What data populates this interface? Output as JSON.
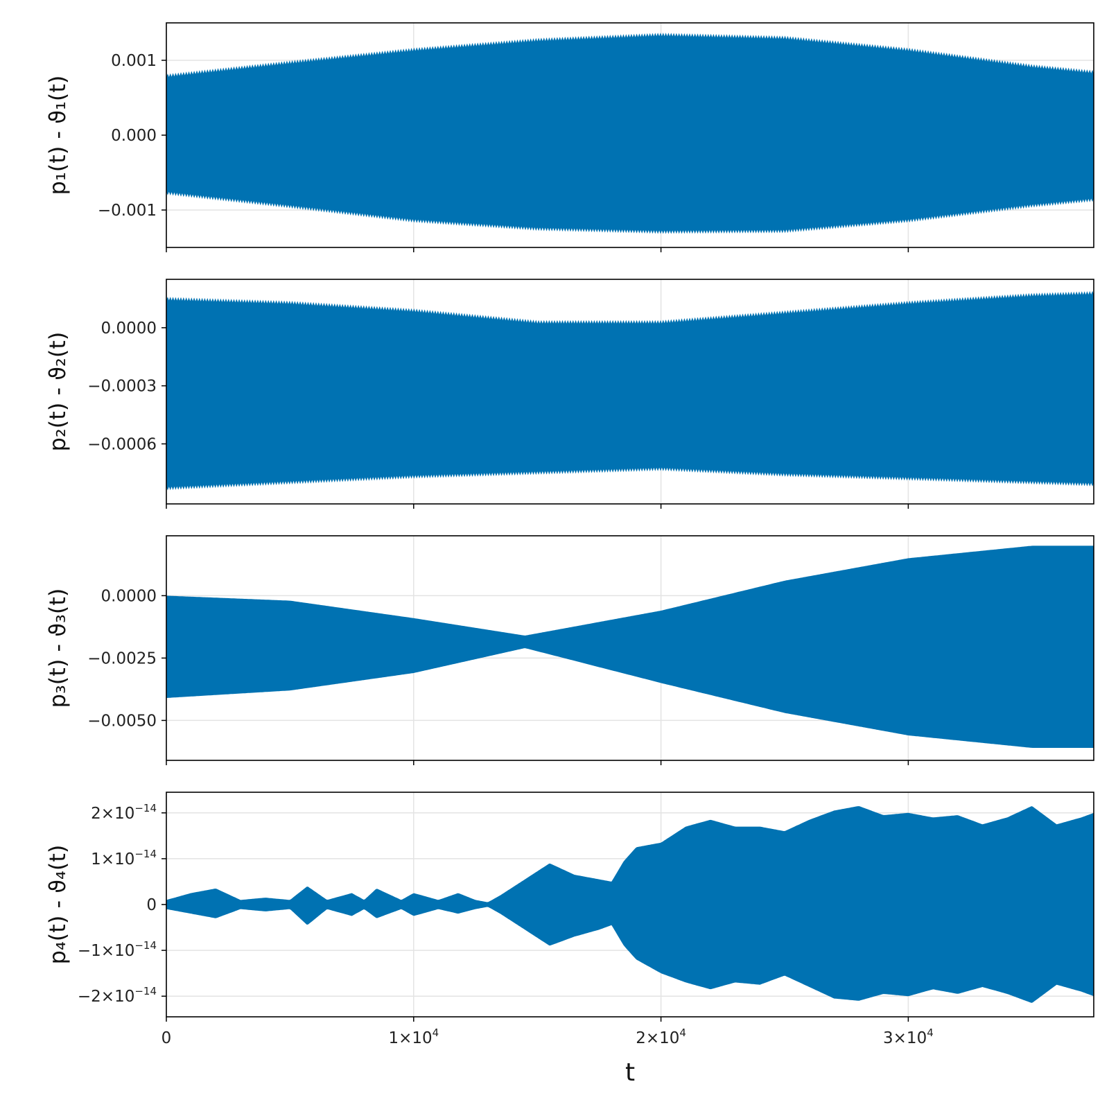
{
  "chart_data": {
    "type": "area",
    "shared_x": {
      "label": "t",
      "range": [
        0,
        37500
      ],
      "ticks": [
        {
          "value": 0,
          "label": "0"
        },
        {
          "value": 10000,
          "mant": "1×10",
          "exp": "4"
        },
        {
          "value": 20000,
          "mant": "2×10",
          "exp": "4"
        },
        {
          "value": 30000,
          "mant": "3×10",
          "exp": "4"
        }
      ],
      "grid": true
    },
    "color": "#0072b2",
    "panels": [
      {
        "ylabel": "p₁(t) - ϑ₁(t)",
        "ylim": [
          -0.0015,
          0.0015
        ],
        "ticks": [
          {
            "value": 0.001,
            "label": "0.001"
          },
          {
            "value": 0.0,
            "label": "0.000"
          },
          {
            "value": -0.001,
            "label": "−0.001"
          }
        ],
        "envelope": {
          "x": [
            0,
            5000,
            10000,
            15000,
            20000,
            25000,
            30000,
            35000,
            37500
          ],
          "upper": [
            0.00082,
            0.001,
            0.00117,
            0.0013,
            0.00137,
            0.00133,
            0.00117,
            0.00095,
            0.00087
          ],
          "lower": [
            -0.0008,
            -0.00098,
            -0.00117,
            -0.00128,
            -0.00132,
            -0.00131,
            -0.00117,
            -0.00097,
            -0.00089
          ]
        }
      },
      {
        "ylabel": "p₂(t) - ϑ₂(t)",
        "ylim": [
          -0.00091,
          0.00025
        ],
        "ticks": [
          {
            "value": 0.0,
            "label": "0.0000"
          },
          {
            "value": -0.0003,
            "label": "−0.0003"
          },
          {
            "value": -0.0006,
            "label": "−0.0006"
          }
        ],
        "envelope": {
          "x": [
            0,
            5000,
            10000,
            15000,
            20000,
            25000,
            30000,
            35000,
            37500
          ],
          "upper": [
            0.00016,
            0.00014,
            0.0001,
            4e-05,
            4e-05,
            9e-05,
            0.00014,
            0.00018,
            0.00019
          ],
          "lower": [
            -0.00084,
            -0.00081,
            -0.00078,
            -0.00076,
            -0.00074,
            -0.00077,
            -0.00079,
            -0.00081,
            -0.00082
          ]
        }
      },
      {
        "ylabel": "p₃(t) - ϑ₃(t)",
        "ylim": [
          -0.0066,
          0.0024
        ],
        "ticks": [
          {
            "value": 0.0,
            "label": "0.0000"
          },
          {
            "value": -0.0025,
            "label": "−0.0025"
          },
          {
            "value": -0.005,
            "label": "−0.0050"
          }
        ],
        "envelope": {
          "x": [
            0,
            5000,
            10000,
            14500,
            20000,
            25000,
            30000,
            35000,
            37500
          ],
          "upper": [
            0.0,
            -0.0002,
            -0.0009,
            -0.0016,
            -0.0006,
            0.0006,
            0.0015,
            0.002,
            0.002
          ],
          "lower": [
            -0.0041,
            -0.0038,
            -0.0031,
            -0.0021,
            -0.0035,
            -0.0047,
            -0.0056,
            -0.0061,
            -0.0061
          ]
        }
      },
      {
        "ylabel": "p₄(t) - ϑ₄(t)",
        "ylim": [
          -2.45e-14,
          2.45e-14
        ],
        "ticks": [
          {
            "value": 2e-14,
            "mant": "2×10",
            "exp": "−14"
          },
          {
            "value": 1e-14,
            "mant": "1×10",
            "exp": "−14"
          },
          {
            "value": 0,
            "label": "0"
          },
          {
            "value": -1e-14,
            "mant": "−1×10",
            "exp": "−14"
          },
          {
            "value": -2e-14,
            "mant": "−2×10",
            "exp": "−14"
          }
        ],
        "envelope": {
          "x": [
            0,
            1000,
            2000,
            3000,
            4000,
            5000,
            5700,
            6500,
            7500,
            8000,
            8500,
            9500,
            10000,
            11000,
            11800,
            12500,
            13000,
            13500,
            14500,
            15500,
            16500,
            17500,
            18000,
            18500,
            19000,
            20000,
            21000,
            22000,
            23000,
            24000,
            25000,
            26000,
            27000,
            28000,
            29000,
            30000,
            31000,
            32000,
            33000,
            34000,
            35000,
            36000,
            37000,
            37500
          ],
          "upper": [
            1e-15,
            2.5e-15,
            3.5e-15,
            1e-15,
            1.5e-15,
            1e-15,
            4e-15,
            1e-15,
            2.5e-15,
            1e-15,
            3.5e-15,
            1e-15,
            2.5e-15,
            1e-15,
            2.5e-15,
            1e-15,
            5e-16,
            2e-15,
            5.5e-15,
            9e-15,
            6.5e-15,
            5.5e-15,
            5e-15,
            9.5e-15,
            1.25e-14,
            1.35e-14,
            1.7e-14,
            1.85e-14,
            1.7e-14,
            1.7e-14,
            1.6e-14,
            1.85e-14,
            2.05e-14,
            2.15e-14,
            1.95e-14,
            2e-14,
            1.9e-14,
            1.95e-14,
            1.75e-14,
            1.9e-14,
            2.15e-14,
            1.75e-14,
            1.9e-14,
            2e-14
          ],
          "lower": [
            -1e-15,
            -2e-15,
            -3e-15,
            -1e-15,
            -1.5e-15,
            -1e-15,
            -4.5e-15,
            -1e-15,
            -2.5e-15,
            -1e-15,
            -3e-15,
            -1e-15,
            -2.5e-15,
            -1e-15,
            -2e-15,
            -1e-15,
            -5e-16,
            -2e-15,
            -5.5e-15,
            -9e-15,
            -7e-15,
            -5.5e-15,
            -4.5e-15,
            -9e-15,
            -1.2e-14,
            -1.5e-14,
            -1.7e-14,
            -1.85e-14,
            -1.7e-14,
            -1.75e-14,
            -1.55e-14,
            -1.8e-14,
            -2.05e-14,
            -2.1e-14,
            -1.95e-14,
            -2e-14,
            -1.85e-14,
            -1.95e-14,
            -1.8e-14,
            -1.95e-14,
            -2.15e-14,
            -1.75e-14,
            -1.9e-14,
            -2e-14
          ]
        }
      }
    ]
  }
}
